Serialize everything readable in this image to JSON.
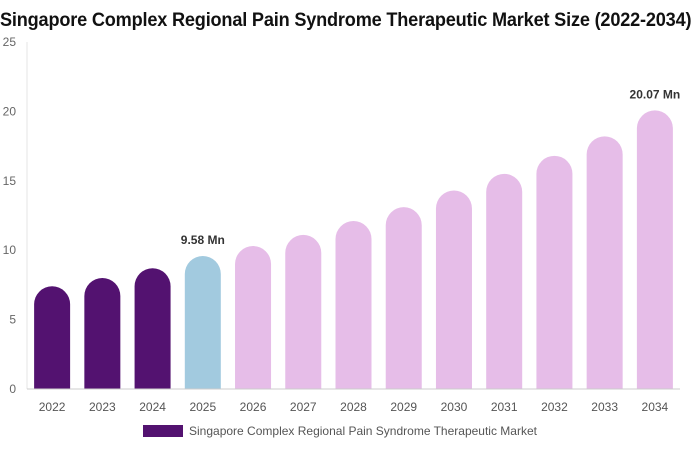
{
  "chart_data": {
    "type": "bar",
    "title": "Singapore Complex Regional Pain Syndrome Therapeutic Market Size (2022-2034)",
    "xlabel": "",
    "ylabel": "",
    "categories": [
      "2022",
      "2023",
      "2024",
      "2025",
      "2026",
      "2027",
      "2028",
      "2029",
      "2030",
      "2031",
      "2032",
      "2033",
      "2034"
    ],
    "series": [
      {
        "name": "Singapore Complex Regional Pain Syndrome Therapeutic Market",
        "values": [
          7.4,
          8.0,
          8.7,
          9.58,
          10.3,
          11.1,
          12.1,
          13.1,
          14.3,
          15.5,
          16.8,
          18.2,
          20.07
        ]
      }
    ],
    "data_labels": [
      {
        "category": "2025",
        "text": "9.58 Mn"
      },
      {
        "category": "2034",
        "text": "20.07 Mn"
      }
    ],
    "yticks": [
      "0",
      "5",
      "10",
      "15",
      "20",
      "25"
    ],
    "ylim": [
      0,
      25
    ],
    "grid": false,
    "legend_position": "bottom",
    "colors": {
      "historical": "#531270",
      "base_year": "#a2cadf",
      "forecast": "#e6bde8",
      "legend_swatch": "#531270"
    },
    "color_groups": [
      "historical",
      "historical",
      "historical",
      "base_year",
      "forecast",
      "forecast",
      "forecast",
      "forecast",
      "forecast",
      "forecast",
      "forecast",
      "forecast",
      "forecast"
    ]
  }
}
